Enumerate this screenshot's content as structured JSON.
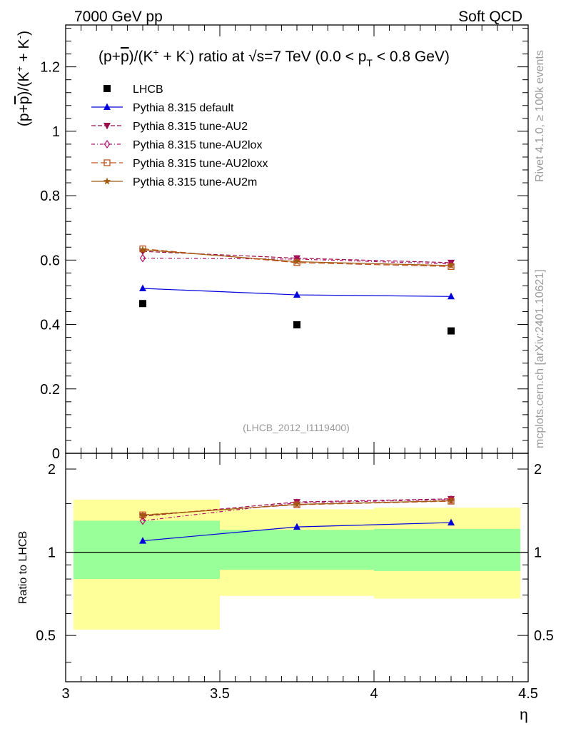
{
  "header": {
    "left": "7000 GeV pp",
    "right": "Soft QCD"
  },
  "side_labels": {
    "rivet": "Rivet 4.1.0, ≥ 100k events",
    "mcplots": "mcplots.cern.ch [arXiv:2401.10621]"
  },
  "chart_data": [
    {
      "type": "scatter",
      "panel": "main",
      "title": "(p+p̄)/(K⁺ + K⁻) ratio at √s=7 TeV (0.0 < p_T < 0.8 GeV)",
      "ylabel": "(p+p̄)/(K⁺ + K⁻)",
      "xlabel": "η",
      "xlim": [
        3.0,
        4.5
      ],
      "ylim": [
        0.0,
        1.33
      ],
      "xticks": [
        "3",
        "3.5",
        "4",
        "4.5"
      ],
      "yticks": [
        "0",
        "0.2",
        "0.4",
        "0.6",
        "0.8",
        "1",
        "1.2"
      ],
      "analysis_tag": "(LHCB_2012_I1119400)",
      "x": [
        3.25,
        3.75,
        4.25
      ],
      "series": [
        {
          "name": "LHCB",
          "color": "#000000",
          "marker": "square-filled",
          "line": "none",
          "values": [
            0.465,
            0.399,
            0.38
          ]
        },
        {
          "name": "Pythia 8.315 default",
          "color": "#0000dd",
          "marker": "triangle-up-filled",
          "line": "solid",
          "values": [
            0.512,
            0.492,
            0.487
          ]
        },
        {
          "name": "Pythia 8.315 tune-AU2",
          "color": "#9b0d4a",
          "marker": "triangle-down-filled",
          "line": "dashed",
          "values": [
            0.627,
            0.606,
            0.592
          ]
        },
        {
          "name": "Pythia 8.315 tune-AU2lox",
          "color": "#b0106e",
          "marker": "diamond-open",
          "line": "dashdot",
          "values": [
            0.606,
            0.603,
            0.588
          ]
        },
        {
          "name": "Pythia 8.315 tune-AU2loxx",
          "color": "#c0501a",
          "marker": "square-open",
          "line": "longdash",
          "values": [
            0.635,
            0.592,
            0.58
          ]
        },
        {
          "name": "Pythia 8.315 tune-AU2m",
          "color": "#a05a10",
          "marker": "star",
          "line": "solid",
          "values": [
            0.632,
            0.595,
            0.583
          ]
        }
      ]
    },
    {
      "type": "line",
      "panel": "ratio",
      "ylabel": "Ratio to LHCB",
      "xlabel": "η",
      "xlim": [
        3.0,
        4.5
      ],
      "ylim": [
        0.34,
        2.28
      ],
      "yticks": [
        "0.5",
        "1",
        "2"
      ],
      "reference": 1.0,
      "bands": {
        "bins": [
          [
            3.0,
            3.5
          ],
          [
            3.5,
            4.0
          ],
          [
            4.0,
            4.5
          ]
        ],
        "yellow": [
          [
            0.525,
            1.55
          ],
          [
            0.695,
            1.43
          ],
          [
            0.68,
            1.45
          ]
        ],
        "green": [
          [
            0.8,
            1.3
          ],
          [
            0.865,
            1.205
          ],
          [
            0.855,
            1.215
          ]
        ]
      },
      "x": [
        3.25,
        3.75,
        4.25
      ],
      "series": [
        {
          "name": "Pythia 8.315 default",
          "values": [
            1.1,
            1.235,
            1.28
          ]
        },
        {
          "name": "Pythia 8.315 tune-AU2",
          "values": [
            1.35,
            1.52,
            1.56
          ]
        },
        {
          "name": "Pythia 8.315 tune-AU2lox",
          "values": [
            1.3,
            1.51,
            1.55
          ]
        },
        {
          "name": "Pythia 8.315 tune-AU2loxx",
          "values": [
            1.365,
            1.485,
            1.53
          ]
        },
        {
          "name": "Pythia 8.315 tune-AU2m",
          "values": [
            1.36,
            1.49,
            1.535
          ]
        }
      ]
    }
  ]
}
